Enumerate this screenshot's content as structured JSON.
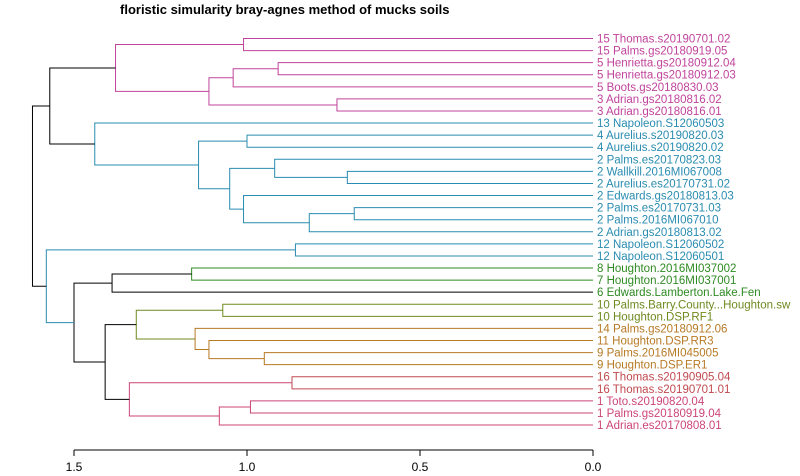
{
  "title": "floristic simularity bray-agnes  method of mucks soils",
  "colors": {
    "black": "#000000",
    "magenta": "#c0439c",
    "blue": "#2a8cb0",
    "green": "#2e8a22",
    "olive": "#6f8a1f",
    "orange": "#b77a25",
    "red": "#c04a50",
    "pink": "#cc4577"
  },
  "chart_data": {
    "type": "dendrogram",
    "axis": {
      "min": 0.0,
      "max": 1.5,
      "reversed": true,
      "ticks": [
        1.5,
        1.0,
        0.5,
        0.0
      ],
      "tick_labels": [
        "1.5",
        "1.0",
        "0.5",
        "0.0"
      ]
    },
    "leaves": [
      {
        "label": "15 Thomas.s20190701.02",
        "color": "magenta"
      },
      {
        "label": "15 Palms.gs20180919.05",
        "color": "magenta"
      },
      {
        "label": "5 Henrietta.gs20180912.04",
        "color": "magenta"
      },
      {
        "label": "5 Henrietta.gs20180912.03",
        "color": "magenta"
      },
      {
        "label": "5 Boots.gs20180830.03",
        "color": "magenta"
      },
      {
        "label": "3 Adrian.gs20180816.02",
        "color": "magenta"
      },
      {
        "label": "3 Adrian.gs20180816.01",
        "color": "magenta"
      },
      {
        "label": "13 Napoleon.S12060503",
        "color": "blue"
      },
      {
        "label": "4 Aurelius.s20190820.03",
        "color": "blue"
      },
      {
        "label": "4 Aurelius.s20190820.02",
        "color": "blue"
      },
      {
        "label": "2 Palms.es20170823.03",
        "color": "blue"
      },
      {
        "label": "2 Wallkill.2016MI067008",
        "color": "blue"
      },
      {
        "label": "2 Aurelius.es20170731.02",
        "color": "blue"
      },
      {
        "label": "2 Edwards.gs20180813.03",
        "color": "blue"
      },
      {
        "label": "2 Palms.es20170731.03",
        "color": "blue"
      },
      {
        "label": "2 Palms.2016MI067010",
        "color": "blue"
      },
      {
        "label": "2 Adrian.gs20180813.02",
        "color": "blue"
      },
      {
        "label": "12 Napoleon.S12060502",
        "color": "blue"
      },
      {
        "label": "12 Napoleon.S12060501",
        "color": "blue"
      },
      {
        "label": "8 Houghton.2016MI037002",
        "color": "green"
      },
      {
        "label": "7 Houghton.2016MI037001",
        "color": "green"
      },
      {
        "label": "6 Edwards.Lamberton.Lake.Fen",
        "color": "green"
      },
      {
        "label": "10 Palms.Barry.County...Houghton.sw",
        "color": "olive"
      },
      {
        "label": "10 Houghton.DSP.RF1",
        "color": "olive"
      },
      {
        "label": "14 Palms.gs20180912.06",
        "color": "orange"
      },
      {
        "label": "11 Houghton.DSP.RR3",
        "color": "orange"
      },
      {
        "label": "9 Palms.2016MI045005",
        "color": "orange"
      },
      {
        "label": "9 Houghton.DSP.ER1",
        "color": "orange"
      },
      {
        "label": "16 Thomas.s20190905.04",
        "color": "red"
      },
      {
        "label": "16 Thomas.s20190701.01",
        "color": "red"
      },
      {
        "label": "1 Toto.s20190820.04",
        "color": "pink"
      },
      {
        "label": "1 Palms.gs20180919.04",
        "color": "pink"
      },
      {
        "label": "1 Adrian.es20170808.01",
        "color": "pink"
      }
    ],
    "merges": [
      {
        "a": "L1",
        "b": "L2",
        "height": 1.01,
        "color": "magenta"
      },
      {
        "a": "L3",
        "b": "L4",
        "height": 0.91,
        "color": "magenta"
      },
      {
        "a": "m2",
        "b": "L5",
        "height": 1.04,
        "color": "magenta"
      },
      {
        "a": "L6",
        "b": "L7",
        "height": 0.74,
        "color": "magenta"
      },
      {
        "a": "m3",
        "b": "m4",
        "height": 1.11,
        "color": "magenta"
      },
      {
        "a": "m1",
        "b": "m5",
        "height": 1.38,
        "color": "magenta"
      },
      {
        "a": "L9",
        "b": "L10",
        "height": 1.0,
        "color": "blue"
      },
      {
        "a": "L12",
        "b": "L13",
        "height": 0.71,
        "color": "blue"
      },
      {
        "a": "L11",
        "b": "m8",
        "height": 0.92,
        "color": "blue"
      },
      {
        "a": "L15",
        "b": "L16",
        "height": 0.69,
        "color": "blue"
      },
      {
        "a": "m10",
        "b": "L17",
        "height": 0.82,
        "color": "blue"
      },
      {
        "a": "L14",
        "b": "m11",
        "height": 1.01,
        "color": "blue"
      },
      {
        "a": "m9",
        "b": "m12",
        "height": 1.05,
        "color": "blue"
      },
      {
        "a": "m7",
        "b": "m13",
        "height": 1.14,
        "color": "blue"
      },
      {
        "a": "L8",
        "b": "m14",
        "height": 1.44,
        "color": "blue"
      },
      {
        "a": "m6",
        "b": "m15",
        "height": 1.57,
        "color": "black"
      },
      {
        "a": "L18",
        "b": "L19",
        "height": 0.86,
        "color": "blue"
      },
      {
        "a": "L20",
        "b": "L21",
        "height": 1.16,
        "color": "green"
      },
      {
        "a": "m18",
        "b": "L22",
        "height": 1.39,
        "color": "black"
      },
      {
        "a": "L23",
        "b": "L24",
        "height": 1.07,
        "color": "olive"
      },
      {
        "a": "L27",
        "b": "L28",
        "height": 0.95,
        "color": "orange"
      },
      {
        "a": "L26",
        "b": "m21",
        "height": 1.11,
        "color": "orange"
      },
      {
        "a": "L25",
        "b": "m22",
        "height": 1.15,
        "color": "orange"
      },
      {
        "a": "m20",
        "b": "m23",
        "height": 1.32,
        "color": "olive"
      },
      {
        "a": "L29",
        "b": "L30",
        "height": 0.87,
        "color": "red"
      },
      {
        "a": "L31",
        "b": "L32",
        "height": 0.99,
        "color": "pink"
      },
      {
        "a": "m26",
        "b": "L33",
        "height": 1.08,
        "color": "pink"
      },
      {
        "a": "m25",
        "b": "m27",
        "height": 1.34,
        "color": "pink"
      },
      {
        "a": "m24",
        "b": "m28",
        "height": 1.41,
        "color": "black"
      },
      {
        "a": "m19",
        "b": "m29",
        "height": 1.5,
        "color": "black"
      },
      {
        "a": "m17",
        "b": "m30",
        "height": 1.58,
        "color": "blue"
      },
      {
        "a": "m16",
        "b": "m31",
        "height": 1.62,
        "color": "black"
      }
    ]
  }
}
